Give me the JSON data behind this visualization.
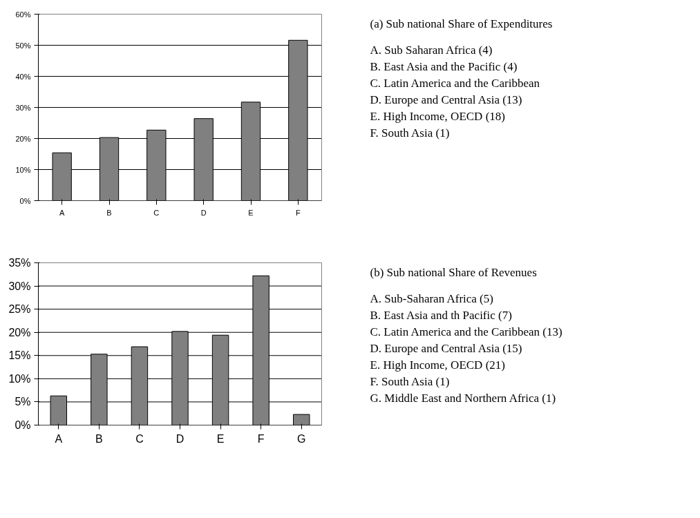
{
  "chart_data": [
    {
      "type": "bar",
      "categories": [
        "A",
        "B",
        "C",
        "D",
        "E",
        "F"
      ],
      "values": [
        15.4,
        20.3,
        22.7,
        26.4,
        31.7,
        51.6
      ],
      "color": "#808080",
      "ylim": [
        0,
        60
      ],
      "yticks": [
        {
          "value": 0,
          "label": "0%"
        },
        {
          "value": 10,
          "label": "10%"
        },
        {
          "value": 20,
          "label": "20%"
        },
        {
          "value": 30,
          "label": "30%"
        },
        {
          "value": 40,
          "label": "40%"
        },
        {
          "value": 50,
          "label": "50%"
        },
        {
          "value": 60,
          "label": "60%"
        }
      ],
      "grid": "y",
      "annotations": [
        "(a) Sub national Share of Expenditures",
        "A. Sub Saharan Africa (4)",
        "B. East Asia and the Pacific (4)",
        "C. Latin America and the Caribbean",
        "D. Europe and Central Asia (13)",
        "E. High Income, OECD (18)",
        "F. South Asia (1)"
      ]
    },
    {
      "type": "bar",
      "categories": [
        "A",
        "B",
        "C",
        "D",
        "E",
        "F",
        "G"
      ],
      "values": [
        6.3,
        15.3,
        16.9,
        20.2,
        19.4,
        32.2,
        2.3
      ],
      "color": "#808080",
      "ylim": [
        0,
        35
      ],
      "yticks": [
        {
          "value": 0,
          "label": "0%"
        },
        {
          "value": 5,
          "label": "5%"
        },
        {
          "value": 10,
          "label": "10%"
        },
        {
          "value": 15,
          "label": "15%"
        },
        {
          "value": 20,
          "label": "20%"
        },
        {
          "value": 25,
          "label": "25%"
        },
        {
          "value": 30,
          "label": "30%"
        },
        {
          "value": 35,
          "label": "35%"
        }
      ],
      "grid": "y",
      "annotations": [
        "(b) Sub national Share of Revenues",
        "A.  Sub-Saharan Africa (5)",
        "B. East Asia and th Pacific (7)",
        "C. Latin America and the Caribbean (13)",
        "D. Europe and Central Asia (15)",
        "E. High Income, OECD (21)",
        "F. South Asia (1)",
        "G. Middle East and Northern Africa (1)"
      ]
    }
  ]
}
